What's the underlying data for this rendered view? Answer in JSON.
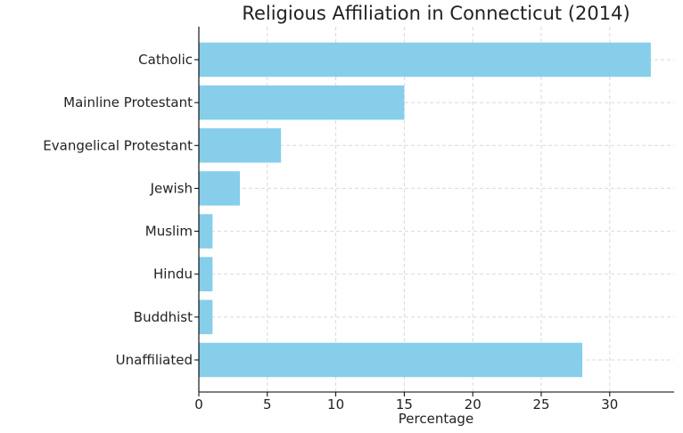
{
  "chart_data": {
    "type": "bar",
    "orientation": "horizontal",
    "title": "Religious Affiliation in Connecticut (2014)",
    "xlabel": "Percentage",
    "ylabel": "",
    "categories": [
      "Catholic",
      "Mainline Protestant",
      "Evangelical Protestant",
      "Jewish",
      "Muslim",
      "Hindu",
      "Buddhist",
      "Unaffiliated"
    ],
    "values": [
      33,
      15,
      6,
      3,
      1,
      1,
      1,
      28
    ],
    "xlim": [
      0,
      34.7
    ],
    "xticks": [
      0,
      5,
      10,
      15,
      20,
      25,
      30
    ],
    "grid": true,
    "bar_color": "#87ceeb"
  }
}
